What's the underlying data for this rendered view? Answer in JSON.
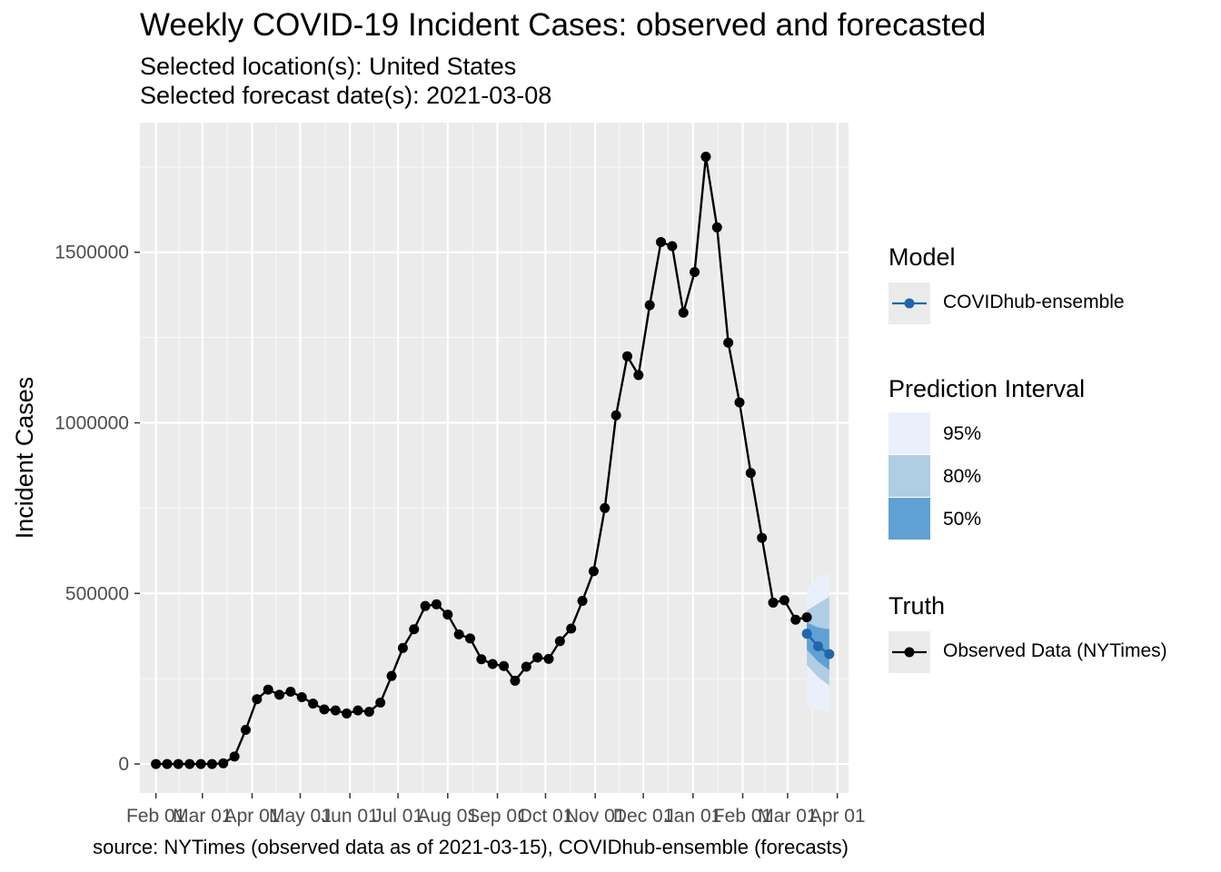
{
  "title": "Weekly COVID-19 Incident Cases: observed and forecasted",
  "subtitle_location": "Selected location(s): United States",
  "subtitle_forecast": "Selected forecast date(s): 2021-03-08",
  "caption": "source: NYTimes (observed data as of 2021-03-15), COVIDhub-ensemble (forecasts)",
  "legend": {
    "model_title": "Model",
    "model_label": "COVIDhub-ensemble",
    "interval_title": "Prediction Interval",
    "intervals": [
      {
        "label": "95%",
        "color": "#eaf0fb"
      },
      {
        "label": "80%",
        "color": "#afcde3"
      },
      {
        "label": "50%",
        "color": "#5fa1d2"
      }
    ],
    "truth_title": "Truth",
    "truth_label": "Observed Data (NYTimes)"
  },
  "chart_data": {
    "type": "line",
    "title": "Weekly COVID-19 Incident Cases: observed and forecasted",
    "xlabel": "",
    "ylabel": "Incident Cases",
    "x_axis": "date",
    "xlim": [
      "2020-01-22",
      "2021-04-08"
    ],
    "ylim": [
      -85000,
      1880000
    ],
    "x_ticks": [
      {
        "date": "2020-02-01",
        "label": "Feb 01"
      },
      {
        "date": "2020-03-01",
        "label": "Mar 01"
      },
      {
        "date": "2020-04-01",
        "label": "Apr 01"
      },
      {
        "date": "2020-05-01",
        "label": "May 01"
      },
      {
        "date": "2020-06-01",
        "label": "Jun 01"
      },
      {
        "date": "2020-07-01",
        "label": "Jul 01"
      },
      {
        "date": "2020-08-01",
        "label": "Aug 01"
      },
      {
        "date": "2020-09-01",
        "label": "Sep 01"
      },
      {
        "date": "2020-10-01",
        "label": "Oct 01"
      },
      {
        "date": "2020-11-01",
        "label": "Nov 01"
      },
      {
        "date": "2020-12-01",
        "label": "Dec 01"
      },
      {
        "date": "2021-01-01",
        "label": "Jan 01"
      },
      {
        "date": "2021-02-01",
        "label": "Feb 01"
      },
      {
        "date": "2021-03-01",
        "label": "Mar 01"
      },
      {
        "date": "2021-04-01",
        "label": "Apr 01"
      }
    ],
    "y_ticks": [
      {
        "value": 0,
        "label": "0"
      },
      {
        "value": 500000,
        "label": "500000"
      },
      {
        "value": 1000000,
        "label": "1000000"
      },
      {
        "value": 1500000,
        "label": "1500000"
      }
    ],
    "grid": true,
    "legend_position": "right",
    "series": [
      {
        "name": "Observed Data (NYTimes)",
        "color": "#000000",
        "x": [
          "2020-02-01",
          "2020-02-08",
          "2020-02-15",
          "2020-02-22",
          "2020-02-29",
          "2020-03-07",
          "2020-03-14",
          "2020-03-21",
          "2020-03-28",
          "2020-04-04",
          "2020-04-11",
          "2020-04-18",
          "2020-04-25",
          "2020-05-02",
          "2020-05-09",
          "2020-05-16",
          "2020-05-23",
          "2020-05-30",
          "2020-06-06",
          "2020-06-13",
          "2020-06-20",
          "2020-06-27",
          "2020-07-04",
          "2020-07-11",
          "2020-07-18",
          "2020-07-25",
          "2020-08-01",
          "2020-08-08",
          "2020-08-15",
          "2020-08-22",
          "2020-08-29",
          "2020-09-05",
          "2020-09-12",
          "2020-09-19",
          "2020-09-26",
          "2020-10-03",
          "2020-10-10",
          "2020-10-17",
          "2020-10-24",
          "2020-10-31",
          "2020-11-07",
          "2020-11-14",
          "2020-11-21",
          "2020-11-28",
          "2020-12-05",
          "2020-12-12",
          "2020-12-19",
          "2020-12-26",
          "2021-01-02",
          "2021-01-09",
          "2021-01-16",
          "2021-01-23",
          "2021-01-30",
          "2021-02-06",
          "2021-02-13",
          "2021-02-20",
          "2021-02-27",
          "2021-03-06",
          "2021-03-13"
        ],
        "y": [
          0,
          0,
          0,
          0,
          0,
          0,
          2000,
          22000,
          100000,
          190000,
          218000,
          203000,
          212000,
          196000,
          177000,
          160000,
          157000,
          148000,
          157000,
          153000,
          180000,
          258000,
          340000,
          395000,
          463000,
          468000,
          438000,
          380000,
          368000,
          307000,
          293000,
          287000,
          244000,
          285000,
          312000,
          308000,
          360000,
          397000,
          478000,
          565000,
          750000,
          1022000,
          1195000,
          1140000,
          1345000,
          1530000,
          1518000,
          1323000,
          1442000,
          1780000,
          1573000,
          1235000,
          1060000,
          853000,
          663000,
          473000,
          480000,
          423000,
          430000
        ]
      },
      {
        "name": "COVIDhub-ensemble",
        "color": "#2166ac",
        "x": [
          "2021-03-13",
          "2021-03-20",
          "2021-03-27"
        ],
        "y": [
          382000,
          345000,
          322000
        ],
        "intervals": [
          {
            "level": "95%",
            "lower": [
              170000,
              160000,
              150000
            ],
            "upper": [
              510000,
              548000,
              562000
            ]
          },
          {
            "level": "80%",
            "lower": [
              290000,
              255000,
              230000
            ],
            "upper": [
              450000,
              470000,
              490000
            ]
          },
          {
            "level": "50%",
            "lower": [
              335000,
              300000,
              275000
            ],
            "upper": [
              415000,
              400000,
              395000
            ]
          }
        ]
      }
    ]
  }
}
